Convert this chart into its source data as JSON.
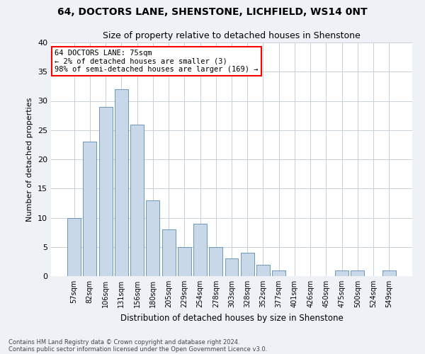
{
  "title1": "64, DOCTORS LANE, SHENSTONE, LICHFIELD, WS14 0NT",
  "title2": "Size of property relative to detached houses in Shenstone",
  "xlabel": "Distribution of detached houses by size in Shenstone",
  "ylabel": "Number of detached properties",
  "categories": [
    "57sqm",
    "82sqm",
    "106sqm",
    "131sqm",
    "156sqm",
    "180sqm",
    "205sqm",
    "229sqm",
    "254sqm",
    "278sqm",
    "303sqm",
    "328sqm",
    "352sqm",
    "377sqm",
    "401sqm",
    "426sqm",
    "450sqm",
    "475sqm",
    "500sqm",
    "524sqm",
    "549sqm"
  ],
  "values": [
    10,
    23,
    29,
    32,
    26,
    13,
    8,
    5,
    9,
    5,
    3,
    4,
    2,
    1,
    0,
    0,
    0,
    1,
    1,
    0,
    1
  ],
  "bar_color": "#c8d8e8",
  "bar_edge_color": "#5a8ab0",
  "annotation_line1": "64 DOCTORS LANE: 75sqm",
  "annotation_line2": "← 2% of detached houses are smaller (3)",
  "annotation_line3": "98% of semi-detached houses are larger (169) →",
  "annotation_box_color": "white",
  "annotation_box_edge": "red",
  "ylim": [
    0,
    40
  ],
  "yticks": [
    0,
    5,
    10,
    15,
    20,
    25,
    30,
    35,
    40
  ],
  "footnote1": "Contains HM Land Registry data © Crown copyright and database right 2024.",
  "footnote2": "Contains public sector information licensed under the Open Government Licence v3.0.",
  "background_color": "#eef2f7",
  "plot_background": "white",
  "grid_color": "#c8d0d8"
}
